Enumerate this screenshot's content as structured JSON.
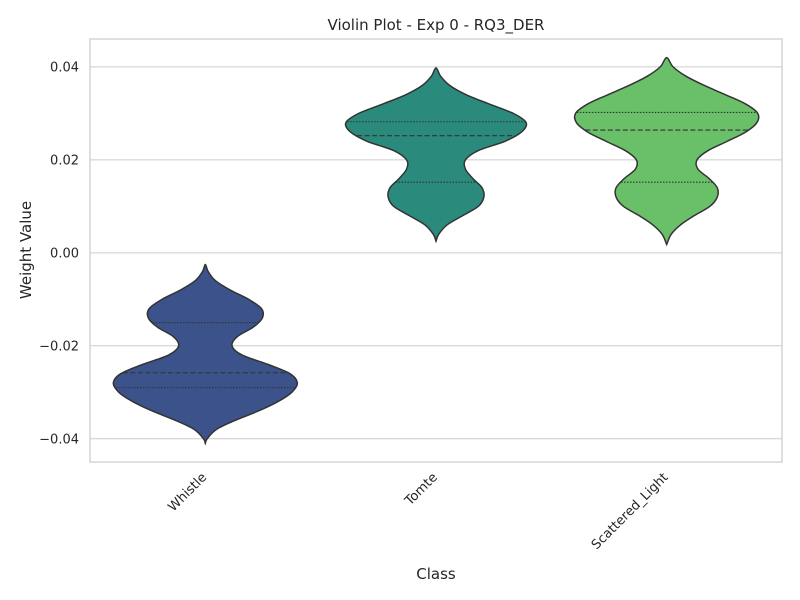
{
  "chart_data": {
    "type": "violin",
    "title": "Violin Plot - Exp 0 - RQ3_DER",
    "xlabel": "Class",
    "ylabel": "Weight Value",
    "ylim": [
      -0.045,
      0.046
    ],
    "yticks": [
      {
        "value": 0.04,
        "label": "0.04"
      },
      {
        "value": 0.02,
        "label": "0.02"
      },
      {
        "value": 0.0,
        "label": "0.00"
      },
      {
        "value": -0.02,
        "label": "−0.02"
      },
      {
        "value": -0.04,
        "label": "−0.04"
      }
    ],
    "grid": true,
    "series": [
      {
        "name": "Whistle",
        "color": "#3b528b",
        "min": -0.041,
        "max": -0.0025,
        "q1": -0.029,
        "median": -0.0258,
        "q3": -0.015,
        "modes": [
          -0.028,
          -0.013
        ],
        "widths": [
          [
            -0.041,
            0.0
          ],
          [
            -0.04,
            0.02
          ],
          [
            -0.038,
            0.12
          ],
          [
            -0.036,
            0.33
          ],
          [
            -0.034,
            0.58
          ],
          [
            -0.032,
            0.79
          ],
          [
            -0.03,
            0.94
          ],
          [
            -0.028,
            1.0
          ],
          [
            -0.026,
            0.92
          ],
          [
            -0.024,
            0.68
          ],
          [
            -0.022,
            0.4
          ],
          [
            -0.02,
            0.29
          ],
          [
            -0.018,
            0.35
          ],
          [
            -0.016,
            0.52
          ],
          [
            -0.014,
            0.62
          ],
          [
            -0.012,
            0.61
          ],
          [
            -0.01,
            0.47
          ],
          [
            -0.008,
            0.27
          ],
          [
            -0.006,
            0.11
          ],
          [
            -0.004,
            0.03
          ],
          [
            -0.0025,
            0.0
          ]
        ]
      },
      {
        "name": "Tomte",
        "color": "#2a8a7c",
        "min": 0.0025,
        "max": 0.0398,
        "q1": 0.0152,
        "median": 0.0252,
        "q3": 0.0282,
        "modes": [
          0.013,
          0.027
        ],
        "widths": [
          [
            0.0025,
            0.0
          ],
          [
            0.004,
            0.03
          ],
          [
            0.006,
            0.12
          ],
          [
            0.008,
            0.29
          ],
          [
            0.01,
            0.46
          ],
          [
            0.012,
            0.52
          ],
          [
            0.014,
            0.5
          ],
          [
            0.016,
            0.4
          ],
          [
            0.018,
            0.32
          ],
          [
            0.02,
            0.32
          ],
          [
            0.022,
            0.46
          ],
          [
            0.024,
            0.75
          ],
          [
            0.026,
            0.93
          ],
          [
            0.028,
            0.98
          ],
          [
            0.03,
            0.84
          ],
          [
            0.032,
            0.58
          ],
          [
            0.034,
            0.33
          ],
          [
            0.036,
            0.15
          ],
          [
            0.038,
            0.05
          ],
          [
            0.0398,
            0.0
          ]
        ]
      },
      {
        "name": "Scattered_Light",
        "color": "#6abf69",
        "min": 0.0018,
        "max": 0.042,
        "q1": 0.0152,
        "median": 0.0264,
        "q3": 0.0302,
        "modes": [
          0.013,
          0.0285
        ],
        "widths": [
          [
            0.0018,
            0.0
          ],
          [
            0.004,
            0.05
          ],
          [
            0.006,
            0.15
          ],
          [
            0.008,
            0.3
          ],
          [
            0.01,
            0.47
          ],
          [
            0.012,
            0.55
          ],
          [
            0.014,
            0.55
          ],
          [
            0.016,
            0.46
          ],
          [
            0.018,
            0.34
          ],
          [
            0.02,
            0.33
          ],
          [
            0.022,
            0.45
          ],
          [
            0.024,
            0.66
          ],
          [
            0.026,
            0.86
          ],
          [
            0.028,
            0.98
          ],
          [
            0.03,
            0.99
          ],
          [
            0.032,
            0.86
          ],
          [
            0.034,
            0.64
          ],
          [
            0.036,
            0.41
          ],
          [
            0.038,
            0.21
          ],
          [
            0.04,
            0.07
          ],
          [
            0.042,
            0.0
          ]
        ]
      }
    ]
  }
}
